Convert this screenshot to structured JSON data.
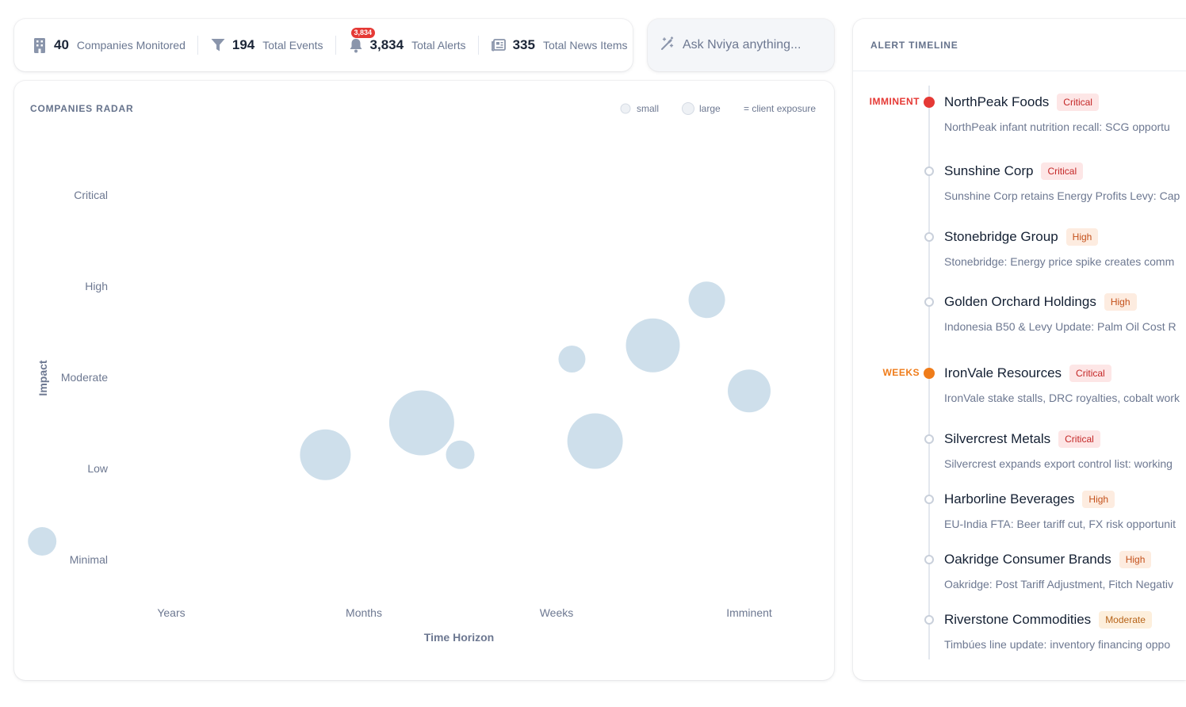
{
  "stats": [
    {
      "value": "40",
      "label": "Companies Monitored",
      "icon": "building-icon"
    },
    {
      "value": "194",
      "label": "Total Events",
      "icon": "filter-icon"
    },
    {
      "value": "3,834",
      "label": "Total Alerts",
      "icon": "bell-icon",
      "badge": "3,834"
    },
    {
      "value": "335",
      "label": "Total News Items",
      "icon": "newspaper-icon"
    }
  ],
  "ask": {
    "placeholder": "Ask Nviya anything...",
    "icon": "magic-wand-icon"
  },
  "radar": {
    "title": "COMPANIES RADAR",
    "legend": {
      "small": "small",
      "large": "large",
      "note": "= client exposure"
    }
  },
  "chart_data": {
    "type": "scatter",
    "title": "COMPANIES RADAR",
    "xlabel": "Time Horizon",
    "ylabel": "Impact",
    "x_categories": [
      "Years",
      "Months",
      "Weeks",
      "Imminent"
    ],
    "y_categories": [
      "Minimal",
      "Low",
      "Moderate",
      "High",
      "Critical"
    ],
    "bubble_color": "#c5d9e8",
    "points": [
      {
        "x": 0.33,
        "y": 1.2,
        "size": 18
      },
      {
        "x": 1.8,
        "y": 2.15,
        "size": 32
      },
      {
        "x": 2.3,
        "y": 2.5,
        "size": 41
      },
      {
        "x": 2.5,
        "y": 2.15,
        "size": 18
      },
      {
        "x": 3.08,
        "y": 3.2,
        "size": 17
      },
      {
        "x": 3.2,
        "y": 2.3,
        "size": 35
      },
      {
        "x": 3.5,
        "y": 3.35,
        "size": 34
      },
      {
        "x": 3.78,
        "y": 3.85,
        "size": 23
      },
      {
        "x": 4.0,
        "y": 2.85,
        "size": 27
      }
    ]
  },
  "timeline": {
    "title": "ALERT TIMELINE",
    "items": [
      {
        "group": "IMMINENT",
        "group_color": "#e53935",
        "dot": "#e53935",
        "name": "NorthPeak Foods",
        "severity": "Critical",
        "sev": "critical",
        "desc": "NorthPeak infant nutrition recall: SCG opportu"
      },
      {
        "group": "",
        "dot": "hollow",
        "name": "Sunshine Corp",
        "severity": "Critical",
        "sev": "critical",
        "desc": "Sunshine Corp retains Energy Profits Levy: Cap"
      },
      {
        "group": "",
        "dot": "hollow",
        "name": "Stonebridge Group",
        "severity": "High",
        "sev": "high",
        "desc": "Stonebridge: Energy price spike creates comm"
      },
      {
        "group": "",
        "dot": "hollow",
        "name": "Golden Orchard Holdings",
        "severity": "High",
        "sev": "high",
        "desc": "Indonesia B50 & Levy Update: Palm Oil Cost R"
      },
      {
        "group": "WEEKS",
        "group_color": "#ef7c1a",
        "dot": "#ef7c1a",
        "name": "IronVale Resources",
        "severity": "Critical",
        "sev": "critical",
        "desc": "IronVale stake stalls, DRC royalties, cobalt work"
      },
      {
        "group": "",
        "dot": "hollow",
        "name": "Silvercrest Metals",
        "severity": "Critical",
        "sev": "critical",
        "desc": "Silvercrest expands export control list: working"
      },
      {
        "group": "",
        "dot": "hollow",
        "name": "Harborline Beverages",
        "severity": "High",
        "sev": "high",
        "desc": "EU-India FTA: Beer tariff cut, FX risk opportunit"
      },
      {
        "group": "",
        "dot": "hollow",
        "name": "Oakridge Consumer Brands",
        "severity": "High",
        "sev": "high",
        "desc": "Oakridge: Post Tariff Adjustment, Fitch Negativ"
      },
      {
        "group": "",
        "dot": "hollow",
        "name": "Riverstone Commodities",
        "severity": "Moderate",
        "sev": "moderate",
        "desc": "Timbúes line update: inventory financing oppo"
      }
    ]
  }
}
